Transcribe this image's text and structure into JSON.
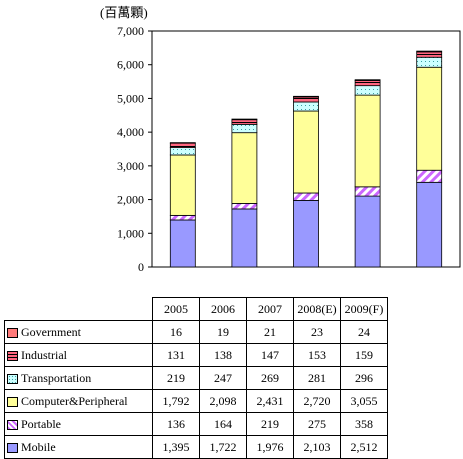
{
  "chart_data": {
    "type": "stacked-bar",
    "unit_label": "(百萬顆)",
    "categories": [
      "2005",
      "2006",
      "2007",
      "2008(E)",
      "2009(F)"
    ],
    "ylim": [
      0,
      7000
    ],
    "yticks": [
      "0",
      "1,000",
      "2,000",
      "3,000",
      "4,000",
      "5,000",
      "6,000",
      "7,000"
    ],
    "grid": false,
    "series": [
      {
        "name": "Mobile",
        "color": "#9999ff",
        "values": [
          1395,
          1722,
          1976,
          2103,
          2512
        ],
        "labels": [
          "1,395",
          "1,722",
          "1,976",
          "2,103",
          "2,512"
        ]
      },
      {
        "name": "Portable",
        "color": "#cc66ff",
        "pattern": "diagonal",
        "values": [
          136,
          164,
          219,
          275,
          358
        ],
        "labels": [
          "136",
          "164",
          "219",
          "275",
          "358"
        ]
      },
      {
        "name": "Computer&Peripheral",
        "color": "#ffff99",
        "values": [
          1792,
          2098,
          2431,
          2720,
          3055
        ],
        "labels": [
          "1,792",
          "2,098",
          "2,431",
          "2,720",
          "3,055"
        ]
      },
      {
        "name": "Transportation",
        "color": "#ccffff",
        "pattern": "dots",
        "values": [
          219,
          247,
          269,
          281,
          296
        ],
        "labels": [
          "219",
          "247",
          "269",
          "281",
          "296"
        ]
      },
      {
        "name": "Industrial",
        "color": "#ff6680",
        "pattern": "hstripe",
        "values": [
          131,
          138,
          147,
          153,
          159
        ],
        "labels": [
          "131",
          "138",
          "147",
          "153",
          "159"
        ]
      },
      {
        "name": "Government",
        "color": "#ff7a7a",
        "values": [
          16,
          19,
          21,
          23,
          24
        ],
        "labels": [
          "16",
          "19",
          "21",
          "23",
          "24"
        ]
      }
    ],
    "table_row_order": [
      "Government",
      "Industrial",
      "Transportation",
      "Computer&Peripheral",
      "Portable",
      "Mobile"
    ]
  }
}
